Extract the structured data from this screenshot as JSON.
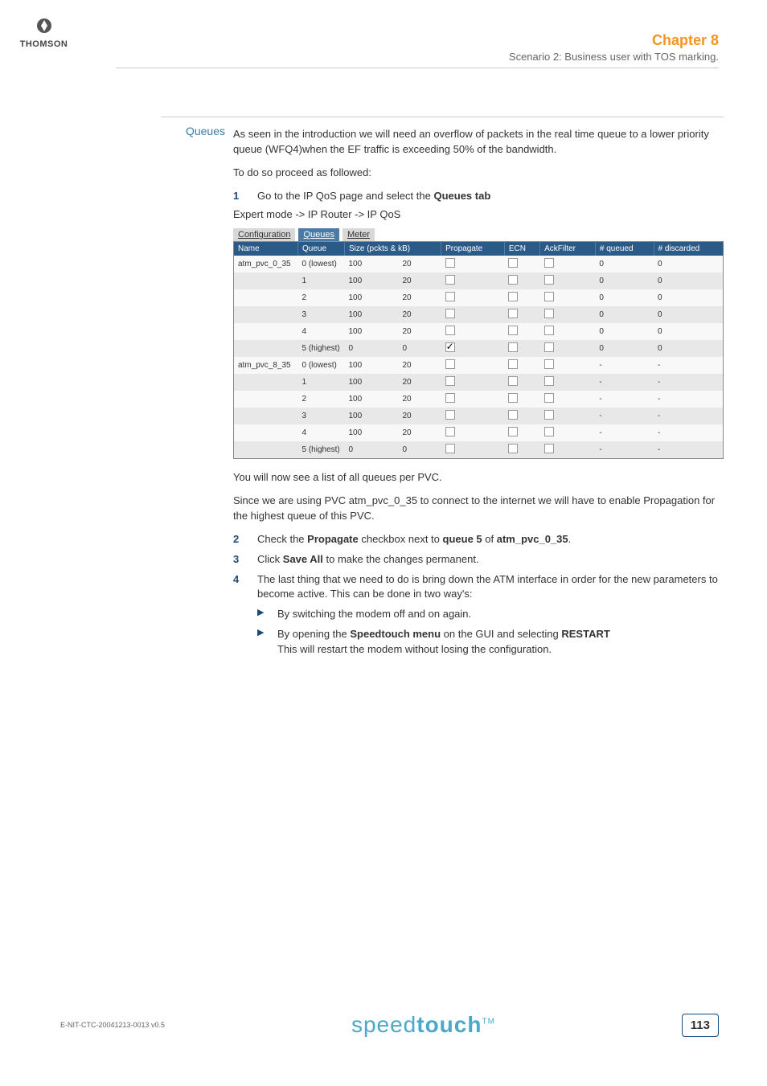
{
  "logo": {
    "name": "THOMSON"
  },
  "header": {
    "chapter": "Chapter 8",
    "subtitle": "Scenario 2: Business user with TOS marking."
  },
  "section": {
    "label": "Queues"
  },
  "intro": {
    "p1": "As seen in the introduction we will need an overflow of packets in the real time queue to a lower priority queue (WFQ4)when the EF traffic is exceeding 50% of the bandwidth.",
    "p2": "To do so proceed as followed:"
  },
  "steps": {
    "s1_text_a": "Go to the IP QoS page and select the ",
    "s1_bold": "Queues tab",
    "nav": "Expert mode -> IP Router -> IP QoS",
    "post1": "You will now see a list of all queues per PVC.",
    "post2": "Since we are using PVC atm_pvc_0_35 to connect to the internet we will have to enable Propagation for the highest queue of this PVC.",
    "s2_a": "Check the ",
    "s2_b": "Propagate",
    "s2_c": " checkbox next to ",
    "s2_d": "queue 5",
    "s2_e": " of ",
    "s2_f": "atm_pvc_0_35",
    "s2_g": ".",
    "s3_a": "Click ",
    "s3_b": "Save All",
    "s3_c": " to make the changes permanent.",
    "s4": "The last thing that we need to do is bring down the ATM interface in order for the new parameters to become active. This can be done in two way's:",
    "b1": "By switching the modem off and on again.",
    "b2_a": "By opening the ",
    "b2_b": "Speedtouch menu",
    "b2_c": " on the GUI and selecting ",
    "b2_d": "RESTART",
    "b2_e": "This will restart the modem without losing the configuration."
  },
  "tabs": {
    "t1": "Configuration",
    "t2": "Queues",
    "t3": "Meter"
  },
  "table": {
    "headers": [
      "Name",
      "Queue",
      "Size (pckts & kB)",
      "",
      "Propagate",
      "ECN",
      "AckFilter",
      "# queued",
      "# discarded"
    ],
    "rows": [
      {
        "name": "atm_pvc_0_35",
        "q": "0 (lowest)",
        "s1": "100",
        "s2": "20",
        "p": false,
        "e": false,
        "a": false,
        "qd": "0",
        "dc": "0",
        "cls": "even"
      },
      {
        "name": "",
        "q": "1",
        "s1": "100",
        "s2": "20",
        "p": false,
        "e": false,
        "a": false,
        "qd": "0",
        "dc": "0",
        "cls": "odd"
      },
      {
        "name": "",
        "q": "2",
        "s1": "100",
        "s2": "20",
        "p": false,
        "e": false,
        "a": false,
        "qd": "0",
        "dc": "0",
        "cls": "even"
      },
      {
        "name": "",
        "q": "3",
        "s1": "100",
        "s2": "20",
        "p": false,
        "e": false,
        "a": false,
        "qd": "0",
        "dc": "0",
        "cls": "odd"
      },
      {
        "name": "",
        "q": "4",
        "s1": "100",
        "s2": "20",
        "p": false,
        "e": false,
        "a": false,
        "qd": "0",
        "dc": "0",
        "cls": "even"
      },
      {
        "name": "",
        "q": "5 (highest)",
        "s1": "0",
        "s2": "0",
        "p": true,
        "e": false,
        "a": false,
        "qd": "0",
        "dc": "0",
        "cls": "odd"
      },
      {
        "name": "atm_pvc_8_35",
        "q": "0 (lowest)",
        "s1": "100",
        "s2": "20",
        "p": false,
        "e": false,
        "a": false,
        "qd": "-",
        "dc": "-",
        "cls": "even"
      },
      {
        "name": "",
        "q": "1",
        "s1": "100",
        "s2": "20",
        "p": false,
        "e": false,
        "a": false,
        "qd": "-",
        "dc": "-",
        "cls": "odd"
      },
      {
        "name": "",
        "q": "2",
        "s1": "100",
        "s2": "20",
        "p": false,
        "e": false,
        "a": false,
        "qd": "-",
        "dc": "-",
        "cls": "even"
      },
      {
        "name": "",
        "q": "3",
        "s1": "100",
        "s2": "20",
        "p": false,
        "e": false,
        "a": false,
        "qd": "-",
        "dc": "-",
        "cls": "odd"
      },
      {
        "name": "",
        "q": "4",
        "s1": "100",
        "s2": "20",
        "p": false,
        "e": false,
        "a": false,
        "qd": "-",
        "dc": "-",
        "cls": "even"
      },
      {
        "name": "",
        "q": "5 (highest)",
        "s1": "0",
        "s2": "0",
        "p": false,
        "e": false,
        "a": false,
        "qd": "-",
        "dc": "-",
        "cls": "odd"
      }
    ]
  },
  "footer": {
    "docid": "E-NIT-CTC-20041213-0013 v0.5",
    "brand_thin": "speed",
    "brand_bold": "touch",
    "tm": "TM",
    "page": "113"
  }
}
